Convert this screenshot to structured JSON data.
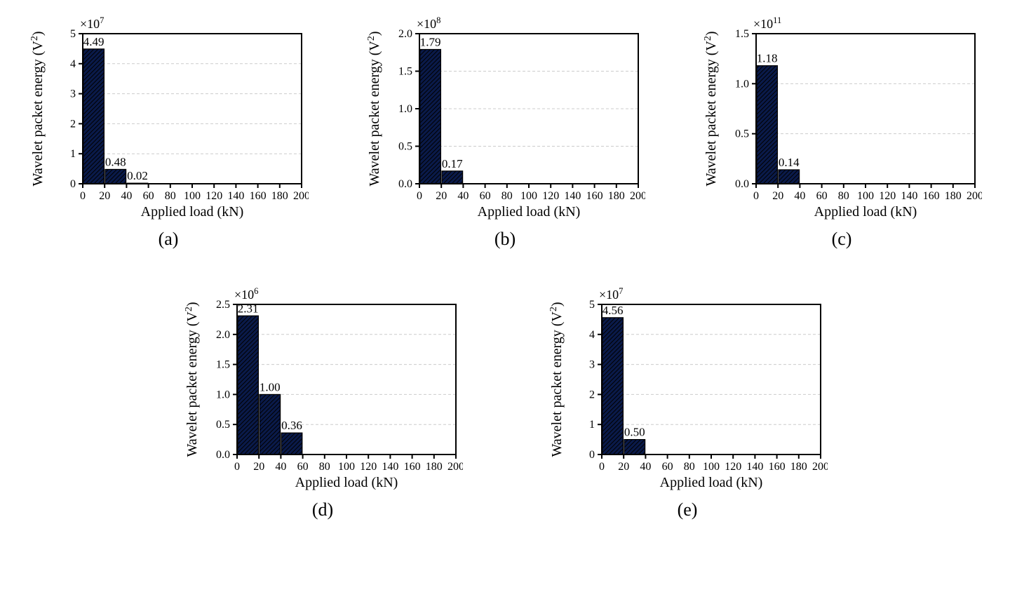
{
  "common": {
    "xlabel": "Applied load (kN)",
    "ylabel": "Wavelet packet energy (V",
    "ylabel_sup": "2",
    "ylabel_close": ")",
    "xticks": [
      0,
      20,
      40,
      60,
      80,
      100,
      120,
      140,
      160,
      180,
      200
    ],
    "xlim": [
      0,
      200
    ],
    "bar_color": "#0a1a4a",
    "bar_fill": "#0a1a4a",
    "hatch_color": "#000000",
    "background_color": "#ffffff",
    "grid_color": "#cccccc",
    "axis_color": "#000000",
    "axis_width": 2,
    "bar_width_units": 18,
    "label_fontsize": 20,
    "tick_fontsize": 16,
    "value_label_fontsize": 17,
    "exponent_fontsize": 18,
    "panel_label_fontsize": 26
  },
  "panels": [
    {
      "id": "a",
      "label": "(a)",
      "exponent_text": "×10",
      "exponent_sup": "7",
      "ylim": [
        0,
        5
      ],
      "yticks": [
        0,
        1,
        2,
        3,
        4,
        5
      ],
      "bars": [
        {
          "x": 0,
          "value": 4.49,
          "label": "4.49"
        },
        {
          "x": 20,
          "value": 0.48,
          "label": "0.48"
        },
        {
          "x": 40,
          "value": 0.02,
          "label": "0.02"
        }
      ]
    },
    {
      "id": "b",
      "label": "(b)",
      "exponent_text": "×10",
      "exponent_sup": "8",
      "ylim": [
        0,
        2.0
      ],
      "yticks": [
        0,
        0.5,
        1.0,
        1.5,
        2.0
      ],
      "bars": [
        {
          "x": 0,
          "value": 1.79,
          "label": "1.79"
        },
        {
          "x": 20,
          "value": 0.17,
          "label": "0.17"
        }
      ]
    },
    {
      "id": "c",
      "label": "(c)",
      "exponent_text": "×10",
      "exponent_sup": "11",
      "ylim": [
        0,
        1.5
      ],
      "yticks": [
        0,
        0.5,
        1.0,
        1.5
      ],
      "bars": [
        {
          "x": 0,
          "value": 1.18,
          "label": "1.18"
        },
        {
          "x": 20,
          "value": 0.14,
          "label": "0.14"
        }
      ]
    },
    {
      "id": "d",
      "label": "(d)",
      "exponent_text": "×10",
      "exponent_sup": "6",
      "ylim": [
        0,
        2.5
      ],
      "yticks": [
        0,
        0.5,
        1.0,
        1.5,
        2.0,
        2.5
      ],
      "bars": [
        {
          "x": 0,
          "value": 2.31,
          "label": "2.31"
        },
        {
          "x": 20,
          "value": 1.0,
          "label": "1.00"
        },
        {
          "x": 40,
          "value": 0.36,
          "label": "0.36"
        }
      ]
    },
    {
      "id": "e",
      "label": "(e)",
      "exponent_text": "×10",
      "exponent_sup": "7",
      "ylim": [
        0,
        5
      ],
      "yticks": [
        0,
        1,
        2,
        3,
        4,
        5
      ],
      "bars": [
        {
          "x": 0,
          "value": 4.56,
          "label": "4.56"
        },
        {
          "x": 20,
          "value": 0.5,
          "label": "0.50"
        }
      ]
    }
  ]
}
